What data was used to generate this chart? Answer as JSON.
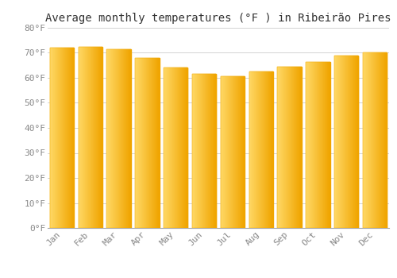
{
  "title": "Average monthly temperatures (°F ) in Ribeirão Pires",
  "months": [
    "Jan",
    "Feb",
    "Mar",
    "Apr",
    "May",
    "Jun",
    "Jul",
    "Aug",
    "Sep",
    "Oct",
    "Nov",
    "Dec"
  ],
  "values": [
    72,
    72.5,
    71.5,
    68,
    64,
    61.5,
    60.5,
    62.5,
    64.5,
    66.5,
    69,
    70
  ],
  "bar_color_left": "#FFD966",
  "bar_color_right": "#F0A500",
  "background_color": "#FFFFFF",
  "grid_color": "#CCCCCC",
  "text_color": "#888888",
  "ylim": [
    0,
    80
  ],
  "yticks": [
    0,
    10,
    20,
    30,
    40,
    50,
    60,
    70,
    80
  ],
  "ytick_labels": [
    "0°F",
    "10°F",
    "20°F",
    "30°F",
    "40°F",
    "50°F",
    "60°F",
    "70°F",
    "80°F"
  ],
  "title_fontsize": 10,
  "tick_fontsize": 8,
  "bar_width": 0.85,
  "num_gradient_slices": 40
}
